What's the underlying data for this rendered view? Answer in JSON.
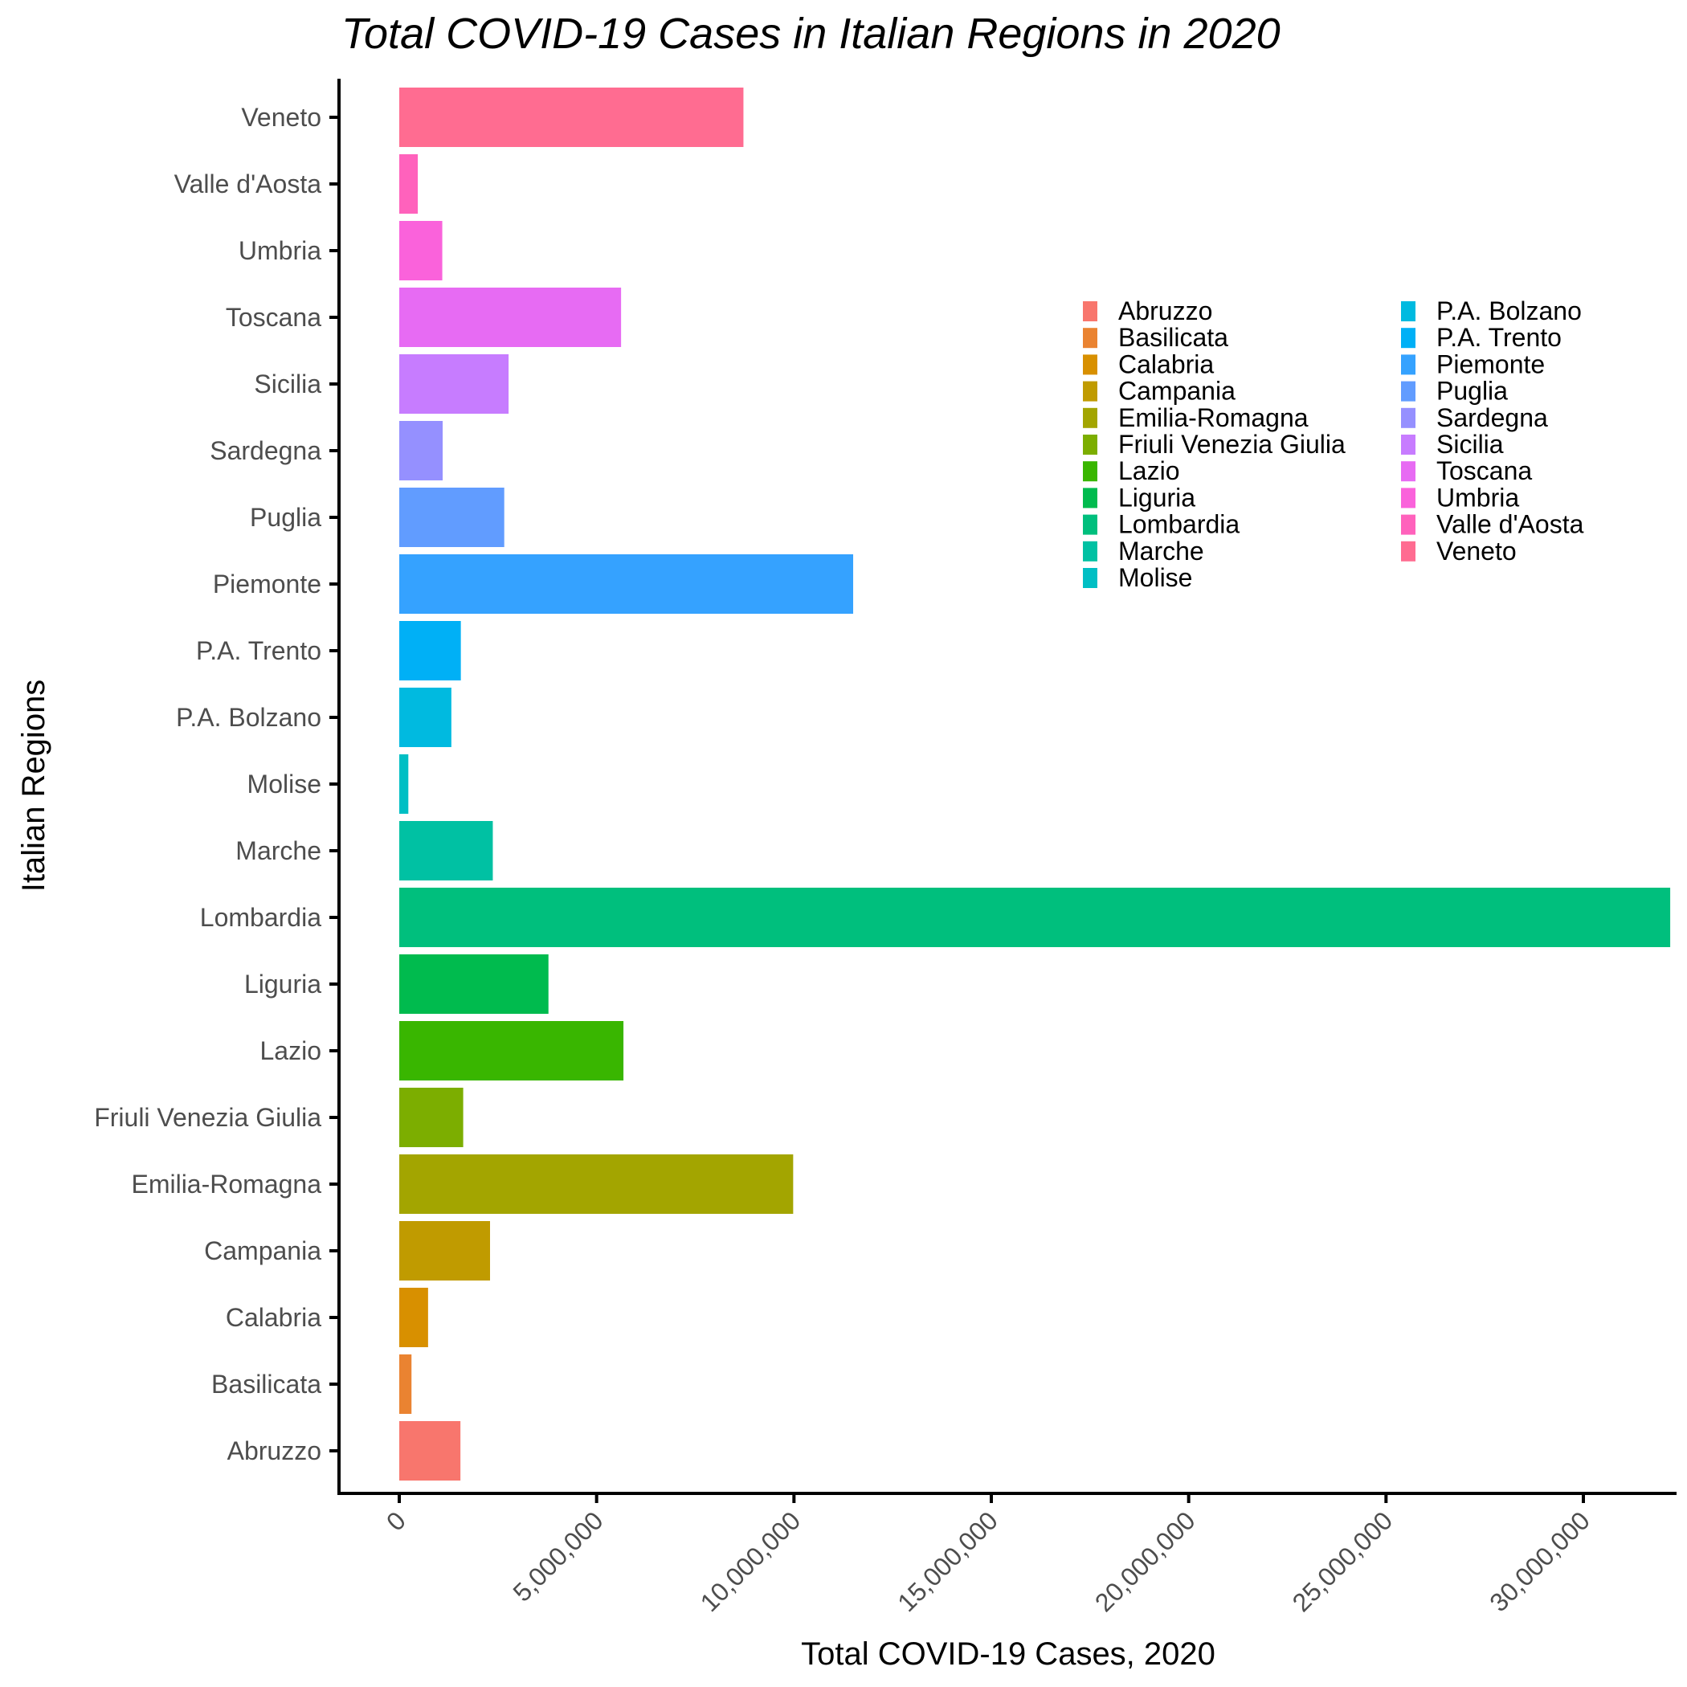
{
  "chart_data": {
    "type": "bar",
    "orientation": "horizontal",
    "title": "Total COVID-19 Cases in Italian Regions in 2020",
    "xlabel": "Total COVID-19 Cases, 2020",
    "ylabel": "Italian Regions",
    "xlim": [
      0,
      32500000
    ],
    "x_ticks": [
      0,
      5000000,
      10000000,
      15000000,
      20000000,
      25000000,
      30000000
    ],
    "x_tick_labels": [
      "0",
      "5,000,000",
      "10,000,000",
      "15,000,000",
      "20,000,000",
      "25,000,000",
      "30,000,000"
    ],
    "grid": false,
    "legend_position": "top-right inside plot, two columns",
    "categories": [
      "Abruzzo",
      "Basilicata",
      "Calabria",
      "Campania",
      "Emilia-Romagna",
      "Friuli Venezia Giulia",
      "Lazio",
      "Liguria",
      "Lombardia",
      "Marche",
      "Molise",
      "P.A. Bolzano",
      "P.A. Trento",
      "Piemonte",
      "Puglia",
      "Sardegna",
      "Sicilia",
      "Toscana",
      "Umbria",
      "Valle d'Aosta",
      "Veneto"
    ],
    "values": [
      1550000,
      310000,
      730000,
      2300000,
      9980000,
      1620000,
      5680000,
      3780000,
      32200000,
      2370000,
      230000,
      1320000,
      1560000,
      11500000,
      2660000,
      1100000,
      2770000,
      5620000,
      1090000,
      470000,
      8720000
    ],
    "colors": [
      "#F8766D",
      "#EA8331",
      "#D89000",
      "#C09B00",
      "#A3A500",
      "#7CAE00",
      "#39B600",
      "#00BB4E",
      "#00BF7D",
      "#00C1A3",
      "#00BFC4",
      "#00BAE0",
      "#00B0F6",
      "#35A2FF",
      "#619CFF",
      "#9590FF",
      "#C77CFF",
      "#E76BF3",
      "#FA62DB",
      "#FF62BC",
      "#FF6C91"
    ],
    "legend": [
      "Abruzzo",
      "Basilicata",
      "Calabria",
      "Campania",
      "Emilia-Romagna",
      "Friuli Venezia Giulia",
      "Lazio",
      "Liguria",
      "Lombardia",
      "Marche",
      "Molise",
      "P.A. Bolzano",
      "P.A. Trento",
      "Piemonte",
      "Puglia",
      "Sardegna",
      "Sicilia",
      "Toscana",
      "Umbria",
      "Valle d'Aosta",
      "Veneto"
    ]
  }
}
